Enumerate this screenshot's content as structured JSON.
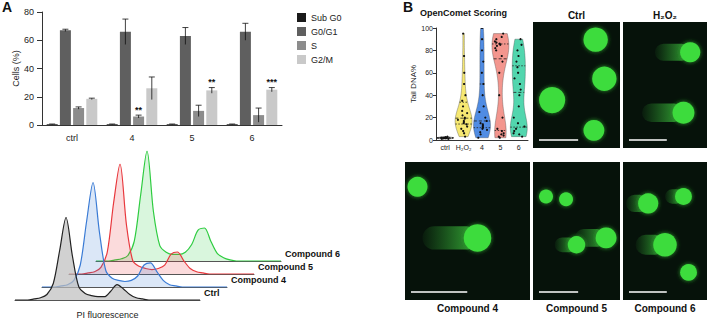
{
  "chart_data": [
    {
      "type": "bar",
      "annotations": [
        "A"
      ],
      "ylabel": "Cells (%)",
      "categories": [
        "ctrl",
        "4",
        "5",
        "6"
      ],
      "ylim": [
        0,
        80
      ],
      "yticks": [
        0,
        20,
        40,
        60,
        80
      ],
      "legend": "right",
      "series": [
        {
          "name": "Sub G0",
          "color": "#1a1a1a",
          "values": [
            0.5,
            0.5,
            0.5,
            0.5
          ],
          "errors": [
            0.2,
            0.2,
            0.2,
            0.2
          ]
        },
        {
          "name": "G0/G1",
          "color": "#5f5f5f",
          "values": [
            67,
            66,
            63,
            66
          ],
          "errors": [
            0.8,
            9,
            6,
            6
          ]
        },
        {
          "name": "S",
          "color": "#8c8c8c",
          "values": [
            12,
            6,
            10,
            7
          ],
          "errors": [
            0.8,
            1,
            4,
            5
          ],
          "annotations": [
            null,
            "**",
            null,
            null
          ]
        },
        {
          "name": "G2/M",
          "color": "#c9c9c9",
          "values": [
            18.5,
            26,
            24.5,
            25
          ],
          "errors": [
            0.5,
            8,
            2,
            1.5
          ],
          "annotations": [
            null,
            null,
            "**",
            "***"
          ]
        }
      ]
    },
    {
      "type": "area",
      "xlabel": "PI fluorescence",
      "tick_labels": false,
      "x": [
        0,
        1,
        2,
        3,
        4,
        5,
        6,
        7,
        8,
        9,
        10,
        11,
        12,
        13,
        14,
        15,
        16,
        17,
        18,
        19,
        20,
        21,
        22,
        23,
        24,
        25,
        26,
        27,
        28,
        29
      ],
      "xlim": [
        0,
        29
      ],
      "ylim": [
        0,
        100
      ],
      "series": [
        {
          "name": "Ctrl",
          "color": "#222222",
          "values": [
            0,
            0,
            0,
            1,
            2,
            5,
            15,
            45,
            75,
            40,
            12,
            6,
            4,
            3,
            3,
            8,
            14,
            10,
            5,
            2,
            1,
            0,
            0,
            0,
            0,
            0,
            0,
            0,
            0,
            0
          ]
        },
        {
          "name": "Compound 4",
          "color": "#3a7bd5",
          "values": [
            0,
            0,
            0,
            1,
            2,
            6,
            20,
            60,
            95,
            50,
            15,
            8,
            6,
            5,
            6,
            10,
            20,
            22,
            14,
            6,
            2,
            1,
            0,
            0,
            0,
            0,
            0,
            0,
            0,
            0
          ]
        },
        {
          "name": "Compound 5",
          "color": "#e8383d",
          "values": [
            0,
            0,
            0,
            1,
            2,
            6,
            20,
            65,
            100,
            45,
            12,
            7,
            5,
            4,
            5,
            8,
            18,
            20,
            12,
            5,
            2,
            1,
            0,
            0,
            0,
            0,
            0,
            0,
            0,
            0
          ]
        },
        {
          "name": "Compound 6",
          "color": "#2ecc40",
          "values": [
            0,
            0,
            0,
            1,
            2,
            5,
            18,
            60,
            100,
            45,
            14,
            8,
            6,
            6,
            8,
            15,
            28,
            30,
            18,
            7,
            3,
            1,
            0,
            0,
            0,
            0,
            0,
            0,
            0,
            0
          ]
        }
      ]
    },
    {
      "type": "violin",
      "annotations": [
        "B"
      ],
      "title": "OpenComet Scoring",
      "ylabel": "Tail DNA%",
      "categories": [
        "ctrl",
        "H₂O₂",
        "4",
        "5",
        "6"
      ],
      "ylim": [
        0,
        100
      ],
      "yticks": [
        0,
        20,
        40,
        60,
        80,
        100
      ],
      "colors": [
        "#9e9e9e",
        "#f5e663",
        "#3d7fe0",
        "#f28b82",
        "#3fd1a5"
      ],
      "values": [
        [
          1,
          1.5,
          2,
          2,
          2.5,
          1,
          3,
          2,
          1.5,
          2
        ],
        [
          3,
          6,
          8,
          10,
          12,
          14,
          15,
          16,
          17,
          18,
          19,
          20,
          22,
          24,
          26,
          30,
          35,
          40,
          50,
          60,
          75,
          95
        ],
        [
          2,
          5,
          7,
          9,
          10,
          11,
          12,
          13,
          14,
          15,
          17,
          20,
          25,
          30,
          40,
          50,
          60,
          70,
          80,
          90,
          100
        ],
        [
          2,
          3,
          4,
          5,
          6,
          8,
          10,
          20,
          40,
          60,
          70,
          75,
          80,
          82,
          84,
          85,
          86,
          87,
          88,
          90,
          92,
          95
        ],
        [
          3,
          5,
          6,
          8,
          10,
          12,
          15,
          20,
          30,
          40,
          45,
          50,
          55,
          60,
          65,
          70,
          75,
          80,
          85,
          90
        ]
      ]
    },
    {
      "type": "image",
      "title": "Ctrl"
    },
    {
      "type": "image",
      "title": "H₂O₂"
    },
    {
      "type": "image",
      "title": "Compound 4"
    },
    {
      "type": "image",
      "title": "Compound 5"
    },
    {
      "type": "image",
      "title": "Compound 6"
    }
  ]
}
